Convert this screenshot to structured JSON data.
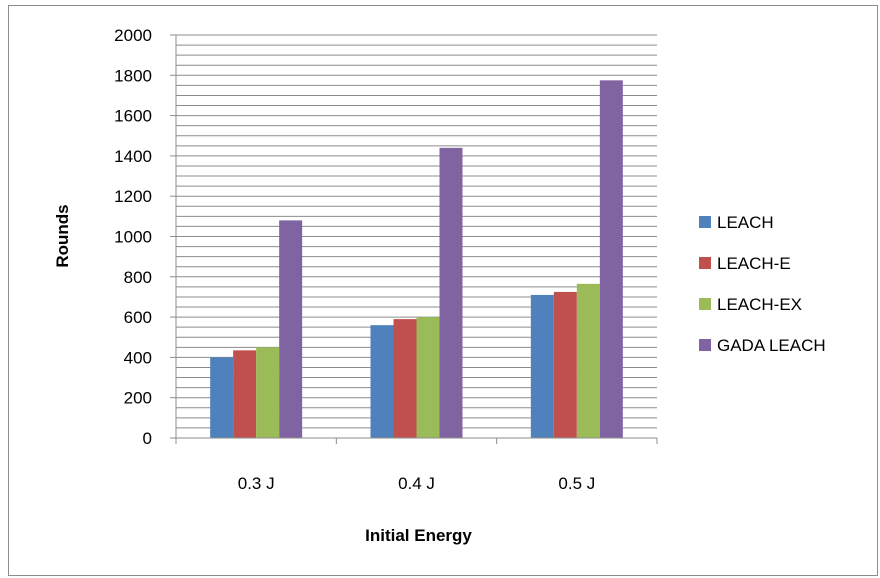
{
  "chart_data": {
    "type": "bar",
    "title": "",
    "xlabel": "Initial Energy",
    "ylabel": "Rounds",
    "categories": [
      "0.3 J",
      "0.4 J",
      "0.5 J"
    ],
    "ylim": [
      0,
      2000
    ],
    "yticks": [
      0,
      200,
      400,
      600,
      800,
      1000,
      1200,
      1400,
      1600,
      1800,
      2000
    ],
    "grid": true,
    "minor_grid_step": 50,
    "legend_position": "right",
    "series": [
      {
        "name": "LEACH",
        "color": "#4f81bd",
        "values": [
          400,
          560,
          710
        ]
      },
      {
        "name": "LEACH-E",
        "color": "#c0504d",
        "values": [
          435,
          590,
          725
        ]
      },
      {
        "name": "LEACH-EX",
        "color": "#9bbb59",
        "values": [
          450,
          600,
          765
        ]
      },
      {
        "name": "GADA LEACH",
        "color": "#8064a2",
        "values": [
          1080,
          1440,
          1775
        ]
      }
    ]
  }
}
